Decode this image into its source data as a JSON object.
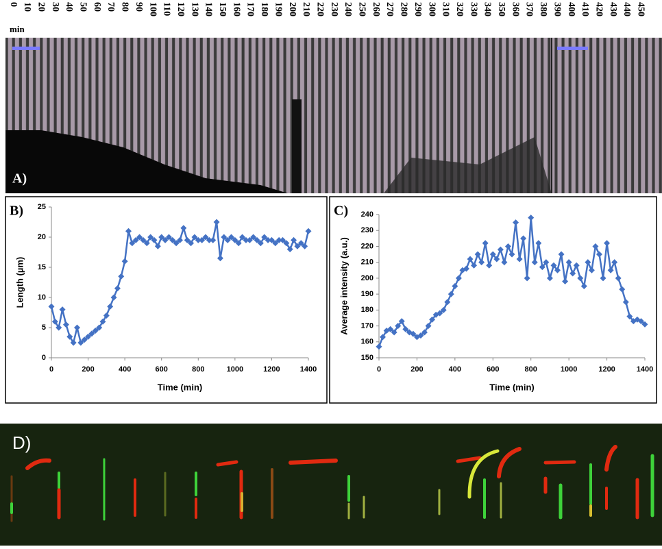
{
  "panel_a": {
    "label": "A)",
    "unit": "min",
    "time_labels": [
      0,
      10,
      20,
      30,
      40,
      50,
      60,
      70,
      80,
      90,
      100,
      110,
      120,
      130,
      140,
      150,
      160,
      170,
      180,
      190,
      200,
      210,
      220,
      230,
      240,
      250,
      260,
      270,
      280,
      290,
      300,
      310,
      320,
      330,
      340,
      350,
      360,
      370,
      380,
      390,
      400,
      410,
      420,
      430,
      440,
      450
    ]
  },
  "chart_data": [
    {
      "type": "line",
      "panel_label": "B)",
      "xlabel": "Time (min)",
      "ylabel": "Length  (µm)",
      "color": "#4472c4",
      "x": [
        0,
        20,
        40,
        60,
        80,
        100,
        120,
        140,
        160,
        180,
        200,
        220,
        240,
        260,
        280,
        300,
        320,
        340,
        360,
        380,
        400,
        420,
        440,
        460,
        480,
        500,
        520,
        540,
        560,
        580,
        600,
        620,
        640,
        660,
        680,
        700,
        720,
        740,
        760,
        780,
        800,
        820,
        840,
        860,
        880,
        900,
        920,
        940,
        960,
        980,
        1000,
        1020,
        1040,
        1060,
        1080,
        1100,
        1120,
        1140,
        1160,
        1180,
        1200,
        1220,
        1240,
        1260,
        1280,
        1300,
        1320,
        1340,
        1360,
        1380,
        1400
      ],
      "values": [
        8.5,
        6,
        5,
        8,
        5.5,
        3.5,
        2.5,
        5,
        2.5,
        3,
        3.5,
        4,
        4.5,
        5,
        6,
        7,
        8.5,
        10,
        11.5,
        13.5,
        16,
        21,
        19,
        19.5,
        20,
        19.5,
        19,
        20,
        19.5,
        18.5,
        20,
        19.5,
        20,
        19.5,
        19,
        19.5,
        21.5,
        19.5,
        19,
        20,
        19.5,
        19.5,
        20,
        19.5,
        19.5,
        22.5,
        16.5,
        20,
        19.5,
        20,
        19.5,
        19,
        20,
        19.5,
        19.5,
        20,
        19.5,
        19,
        20,
        19.5,
        19.5,
        19,
        19.5,
        19.5,
        19,
        18,
        19.5,
        18.5,
        19,
        18.5,
        21
      ],
      "xlim": [
        0,
        1400
      ],
      "xticks": [
        0,
        200,
        400,
        600,
        800,
        1000,
        1200,
        1400
      ],
      "ylim": [
        0,
        25
      ],
      "yticks": [
        0,
        5,
        10,
        15,
        20,
        25
      ]
    },
    {
      "type": "line",
      "panel_label": "C)",
      "xlabel": "Time (min)",
      "ylabel": "Average intensity  (a.u.)",
      "color": "#4472c4",
      "x": [
        0,
        20,
        40,
        60,
        80,
        100,
        120,
        140,
        160,
        180,
        200,
        220,
        240,
        260,
        280,
        300,
        320,
        340,
        360,
        380,
        400,
        420,
        440,
        460,
        480,
        500,
        520,
        540,
        560,
        580,
        600,
        620,
        640,
        660,
        680,
        700,
        720,
        740,
        760,
        780,
        800,
        820,
        840,
        860,
        880,
        900,
        920,
        940,
        960,
        980,
        1000,
        1020,
        1040,
        1060,
        1080,
        1100,
        1120,
        1140,
        1160,
        1180,
        1200,
        1220,
        1240,
        1260,
        1280,
        1300,
        1320,
        1340,
        1360,
        1380,
        1400
      ],
      "values": [
        157,
        163,
        167,
        168,
        166,
        170,
        173,
        168,
        166,
        165,
        163,
        164,
        166,
        170,
        174,
        177,
        178,
        180,
        185,
        190,
        195,
        200,
        205,
        206,
        212,
        208,
        215,
        210,
        222,
        208,
        215,
        212,
        218,
        210,
        220,
        215,
        235,
        212,
        225,
        200,
        238,
        210,
        222,
        207,
        210,
        200,
        208,
        205,
        215,
        198,
        210,
        203,
        208,
        200,
        195,
        210,
        205,
        220,
        215,
        200,
        222,
        205,
        210,
        200,
        193,
        185,
        176,
        173,
        174,
        173,
        171
      ],
      "xlim": [
        0,
        1400
      ],
      "xticks": [
        0,
        200,
        400,
        600,
        800,
        1000,
        1200,
        1400
      ],
      "ylim": [
        150,
        240
      ],
      "yticks": [
        150,
        160,
        170,
        180,
        190,
        200,
        210,
        220,
        230,
        240
      ]
    }
  ],
  "panel_d": {
    "label": "D)"
  }
}
